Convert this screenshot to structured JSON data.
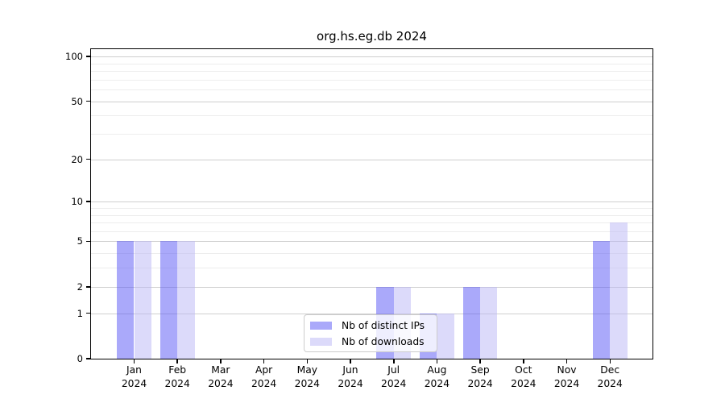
{
  "chart_data": {
    "type": "bar",
    "title": "org.hs.eg.db 2024",
    "x_categories": [
      "Jan",
      "Feb",
      "Mar",
      "Apr",
      "May",
      "Jun",
      "Jul",
      "Aug",
      "Sep",
      "Oct",
      "Nov",
      "Dec"
    ],
    "x_year_label": "2024",
    "series": [
      {
        "name": "Nb of distinct IPs",
        "color": "#aaa9fa",
        "values": [
          5,
          5,
          0,
          0,
          0,
          0,
          2,
          1,
          2,
          0,
          0,
          5
        ]
      },
      {
        "name": "Nb of downloads",
        "color": "#dcdafa",
        "values": [
          5,
          5,
          0,
          0,
          0,
          0,
          2,
          1,
          2,
          0,
          0,
          7
        ]
      }
    ],
    "y_axis": {
      "scale": "log10(1+x)",
      "major_ticks": [
        0,
        1,
        2,
        5,
        10,
        20,
        50,
        100
      ],
      "minor_gridlines": [
        3,
        4,
        6,
        7,
        8,
        9,
        30,
        40,
        60,
        70,
        80,
        90
      ],
      "top_value": 112
    },
    "grid": "horizontal",
    "legend_position": "bottom-center"
  }
}
